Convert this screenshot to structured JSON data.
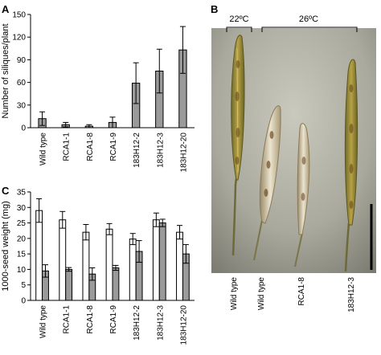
{
  "panels": {
    "a": "A",
    "b": "B",
    "c": "C"
  },
  "photo": {
    "temp_left": "22ºC",
    "temp_right": "26ºC",
    "labels": [
      "Wild type",
      "Wild type",
      "RCA1-8",
      "183H12-3"
    ]
  },
  "colors": {
    "bar_gray": "#9a9a9a",
    "bar_white": "#ffffff",
    "photo_bg": "#a7a79b"
  },
  "chart_data": [
    {
      "type": "bar",
      "panel": "A",
      "ylabel": "Number of siliques/plant",
      "ylim": [
        0,
        150
      ],
      "yticks": [
        0,
        30,
        60,
        90,
        120,
        150
      ],
      "categories": [
        "Wild type",
        "RCA1-1",
        "RCA1-8",
        "RCA1-9",
        "183H12-2",
        "183H12-3",
        "183H12-20"
      ],
      "series": [
        {
          "values": [
            12,
            4,
            2,
            7,
            59,
            75,
            103
          ],
          "errors": [
            9,
            3,
            2,
            7,
            27,
            29,
            31
          ]
        }
      ]
    },
    {
      "type": "bar",
      "panel": "C",
      "ylabel": "1000-seed weight (mg)",
      "ylim": [
        0,
        35
      ],
      "yticks": [
        0,
        5,
        10,
        15,
        20,
        25,
        30,
        35
      ],
      "categories": [
        "Wild type",
        "RCA1-1",
        "RCA1-8",
        "RCA1-9",
        "183H12-2",
        "183H12-3",
        "183H12-20"
      ],
      "series": [
        {
          "values": [
            29,
            26,
            22,
            23,
            19.8,
            26,
            22
          ],
          "errors": [
            3.8,
            2.7,
            2.5,
            1.8,
            1.8,
            2.2,
            2.2
          ]
        },
        {
          "values": [
            9.5,
            10,
            8.5,
            10.5,
            15.8,
            25,
            15
          ],
          "errors": [
            2,
            0.6,
            2,
            0.8,
            3.5,
            1.2,
            3
          ]
        }
      ]
    }
  ]
}
